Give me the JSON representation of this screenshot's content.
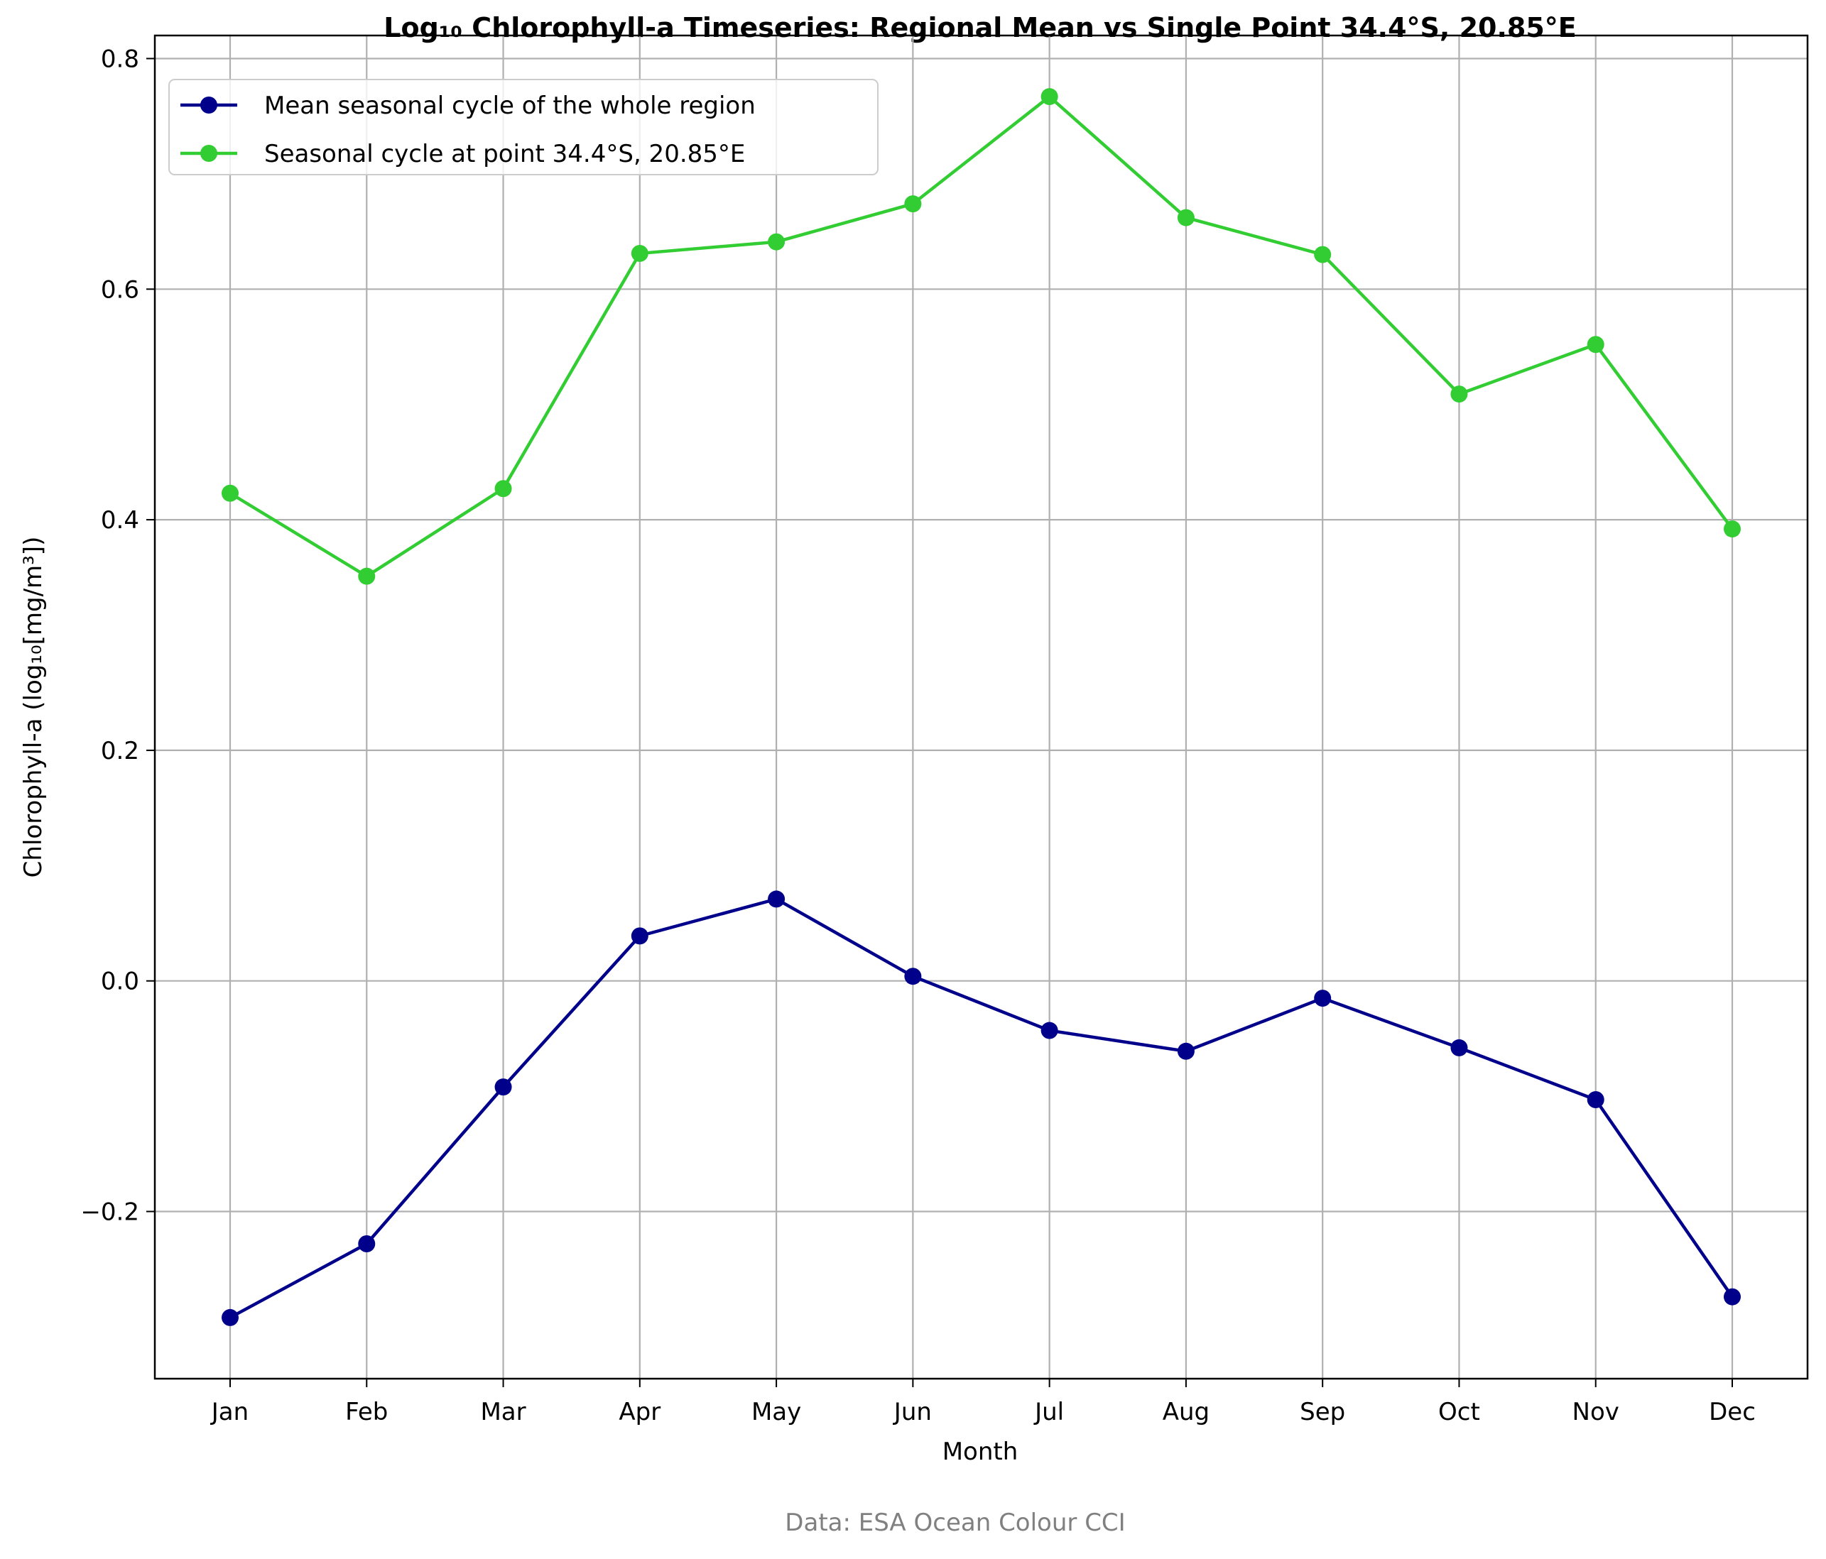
{
  "chart_data": {
    "type": "line",
    "title": "Log₁₀ Chlorophyll-a Timeseries: Regional Mean vs Single Point 34.4°S, 20.85°E",
    "xlabel": "Month",
    "ylabel": "Chlorophyll-a (log₁₀[mg/m³])",
    "categories": [
      "Jan",
      "Feb",
      "Mar",
      "Apr",
      "May",
      "Jun",
      "Jul",
      "Aug",
      "Sep",
      "Oct",
      "Nov",
      "Dec"
    ],
    "ylim": [
      -0.345,
      0.82
    ],
    "yticks": [
      -0.2,
      0.0,
      0.2,
      0.4,
      0.6,
      0.8
    ],
    "ytick_labels": [
      "−0.2",
      "0.0",
      "0.2",
      "0.4",
      "0.6",
      "0.8"
    ],
    "grid": true,
    "legend_position": "top-left",
    "series": [
      {
        "name": "Mean seasonal cycle of the whole region",
        "color": "#00008b",
        "values": [
          -0.292,
          -0.228,
          -0.092,
          0.039,
          0.071,
          0.004,
          -0.043,
          -0.061,
          -0.015,
          -0.058,
          -0.103,
          -0.274
        ]
      },
      {
        "name": "Seasonal cycle at point 34.4°S, 20.85°E",
        "color": "#32cd32",
        "values": [
          0.423,
          0.351,
          0.427,
          0.631,
          0.641,
          0.674,
          0.767,
          0.662,
          0.63,
          0.509,
          0.552,
          0.392
        ]
      }
    ],
    "footnote": "Data: ESA Ocean Colour CCI"
  }
}
